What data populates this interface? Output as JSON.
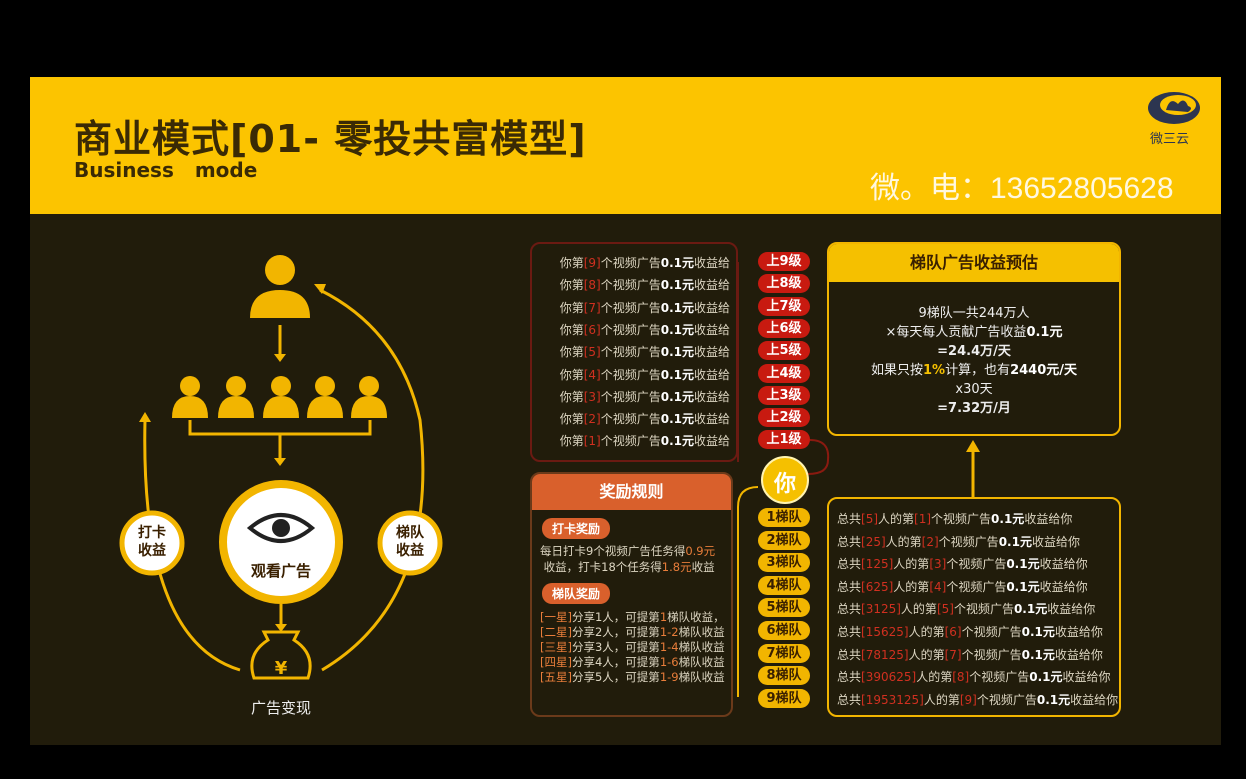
{
  "header": {
    "title": "商业模式[01- 零投共富模型]",
    "subtitle": "Business mode",
    "contact": "微。电：13652805628",
    "logo_text": "微三云"
  },
  "diagram": {
    "watch_ad": "观看广告",
    "cash_out": "广告变现",
    "checkin_income": [
      "打卡",
      "收益"
    ],
    "team_income": [
      "梯队",
      "收益"
    ],
    "accent": "#f2b500"
  },
  "levels": {
    "rows": [
      {
        "pre": "你第",
        "num": "[9]",
        "post": "个视频广告",
        "amt": "0.1元",
        "tail": "收益给",
        "badge": "上9级"
      },
      {
        "pre": "你第",
        "num": "[8]",
        "post": "个视频广告",
        "amt": "0.1元",
        "tail": "收益给",
        "badge": "上8级"
      },
      {
        "pre": "你第",
        "num": "[7]",
        "post": "个视频广告",
        "amt": "0.1元",
        "tail": "收益给",
        "badge": "上7级"
      },
      {
        "pre": "你第",
        "num": "[6]",
        "post": "个视频广告",
        "amt": "0.1元",
        "tail": "收益给",
        "badge": "上6级"
      },
      {
        "pre": "你第",
        "num": "[5]",
        "post": "个视频广告",
        "amt": "0.1元",
        "tail": "收益给",
        "badge": "上5级"
      },
      {
        "pre": "你第",
        "num": "[4]",
        "post": "个视频广告",
        "amt": "0.1元",
        "tail": "收益给",
        "badge": "上4级"
      },
      {
        "pre": "你第",
        "num": "[3]",
        "post": "个视频广告",
        "amt": "0.1元",
        "tail": "收益给",
        "badge": "上3级"
      },
      {
        "pre": "你第",
        "num": "[2]",
        "post": "个视频广告",
        "amt": "0.1元",
        "tail": "收益给",
        "badge": "上2级"
      },
      {
        "pre": "你第",
        "num": "[1]",
        "post": "个视频广告",
        "amt": "0.1元",
        "tail": "收益给",
        "badge": "上1级"
      }
    ],
    "you": "你"
  },
  "reward": {
    "title": "奖励规则",
    "checkin_title": "打卡奖励",
    "checkin_l1": "每日打卡9个视频广告任务得",
    "checkin_v1": "0.9元",
    "checkin_l2a": "收益，打卡18个任务得",
    "checkin_v2": "1.8元",
    "checkin_l2b": "收益",
    "team_title": "梯队奖励",
    "stars": [
      {
        "star": "[一星]",
        "txt": "分享1人，可提第",
        "rng": "1",
        "end": "梯队收益，"
      },
      {
        "star": "[二星]",
        "txt": "分享2人，可提第",
        "rng": "1-2",
        "end": "梯队收益"
      },
      {
        "star": "[三星]",
        "txt": "分享3人，可提第",
        "rng": "1-4",
        "end": "梯队收益"
      },
      {
        "star": "[四星]",
        "txt": "分享4人，可提第",
        "rng": "1-6",
        "end": "梯队收益"
      },
      {
        "star": "[五星]",
        "txt": "分享5人，可提第",
        "rng": "1-9",
        "end": "梯队收益"
      }
    ]
  },
  "estimate": {
    "title": "梯队广告收益预估",
    "l1": "9梯队一共244万人",
    "l2a": "×每天每人贡献广告收益",
    "l2b": "0.1元",
    "l3": "=24.4万/天",
    "l4a": "如果只按",
    "l4b": "1%",
    "l4c": "计算，也有",
    "l4d": "2440元/天",
    "l5": "x30天",
    "l6": "=7.32万/月"
  },
  "teams": {
    "rows": [
      {
        "badge": "1梯队",
        "count": "[5]",
        "lvl": "[1]"
      },
      {
        "badge": "2梯队",
        "count": "[25]",
        "lvl": "[2]"
      },
      {
        "badge": "3梯队",
        "count": "[125]",
        "lvl": "[3]"
      },
      {
        "badge": "4梯队",
        "count": "[625]",
        "lvl": "[4]"
      },
      {
        "badge": "5梯队",
        "count": "[3125]",
        "lvl": "[5]"
      },
      {
        "badge": "6梯队",
        "count": "[15625]",
        "lvl": "[6]"
      },
      {
        "badge": "7梯队",
        "count": "[78125]",
        "lvl": "[7]"
      },
      {
        "badge": "8梯队",
        "count": "[390625]",
        "lvl": "[8]"
      },
      {
        "badge": "9梯队",
        "count": "[1953125]",
        "lvl": "[9]"
      }
    ],
    "p1": "总共",
    "p2": "人的第",
    "p3": "个视频广告",
    "p4": "0.1元",
    "p5": "收益给你"
  }
}
